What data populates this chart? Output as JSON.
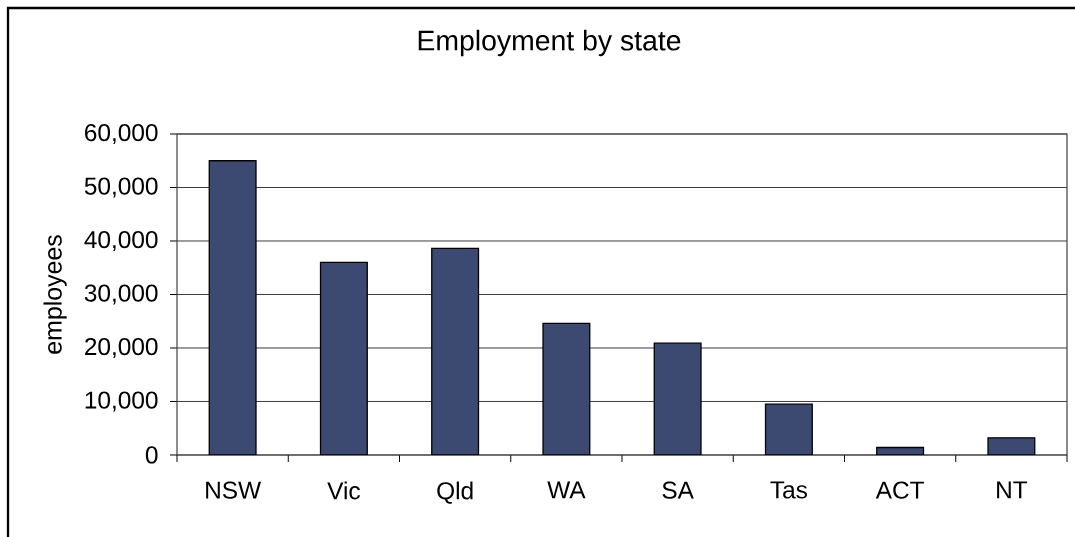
{
  "chart_data": {
    "type": "bar",
    "title": "Employment by state",
    "ylabel": "employees",
    "categories": [
      "NSW",
      "Vic",
      "Qld",
      "WA",
      "SA",
      "Tas",
      "ACT",
      "NT"
    ],
    "values": [
      55000,
      36000,
      38600,
      24600,
      20900,
      9500,
      1400,
      3200
    ],
    "color": "#3c4a72",
    "ylim": [
      0,
      60000
    ],
    "yticks": [
      0,
      {
        "value": 10000,
        "label": "10,000"
      },
      {
        "value": 20000,
        "label": "20,000"
      },
      {
        "value": 30000,
        "label": "30,000"
      },
      {
        "value": 40000,
        "label": "40,000"
      },
      {
        "value": 50000,
        "label": "50,000"
      },
      {
        "value": 60000,
        "label": "60,000"
      }
    ],
    "grid": "y"
  }
}
